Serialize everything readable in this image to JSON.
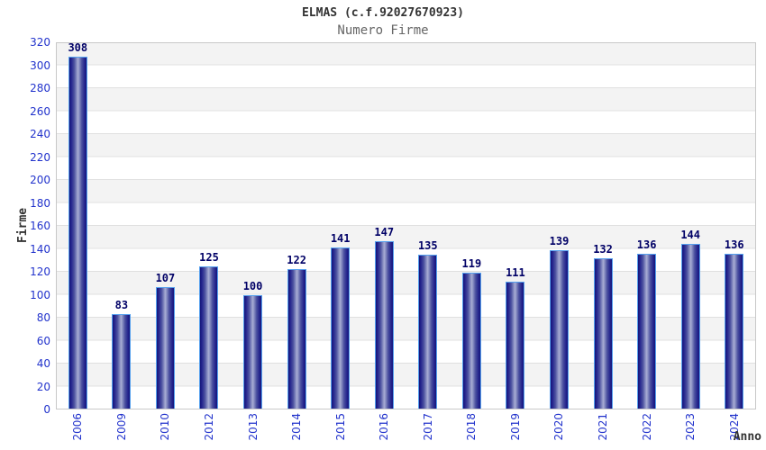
{
  "header": {
    "title": "ELMAS (c.f.92027670923)",
    "subtitle": "Numero Firme"
  },
  "chart_data": {
    "type": "bar",
    "title": "ELMAS (c.f.92027670923)",
    "subtitle": "Numero Firme",
    "xlabel": "Anno",
    "ylabel": "Firme",
    "categories": [
      "2006",
      "2009",
      "2010",
      "2012",
      "2013",
      "2014",
      "2015",
      "2016",
      "2017",
      "2018",
      "2019",
      "2020",
      "2021",
      "2022",
      "2023",
      "2024"
    ],
    "values": [
      308,
      83,
      107,
      125,
      100,
      122,
      141,
      147,
      135,
      119,
      111,
      139,
      132,
      136,
      144,
      136
    ],
    "ylim": [
      0,
      320
    ],
    "ytick_step": 20,
    "grid": "horizontal-bands-alternating",
    "legend": "none",
    "value_labels": "above-bars",
    "colors": {
      "bar_dark": "#15157a",
      "bar_mid": "#23238c",
      "bar_light": "#a9aed4",
      "bar_border": "#55a0ee",
      "value_label": "#000066",
      "tick_label": "#2233cc",
      "band_gray": "#f3f3f3",
      "band_white": "#ffffff",
      "gridline": "#e0e0e0",
      "plot_border": "#c8c8c8",
      "title": "#333333",
      "subtitle": "#666666",
      "axis_label": "#333333"
    }
  }
}
